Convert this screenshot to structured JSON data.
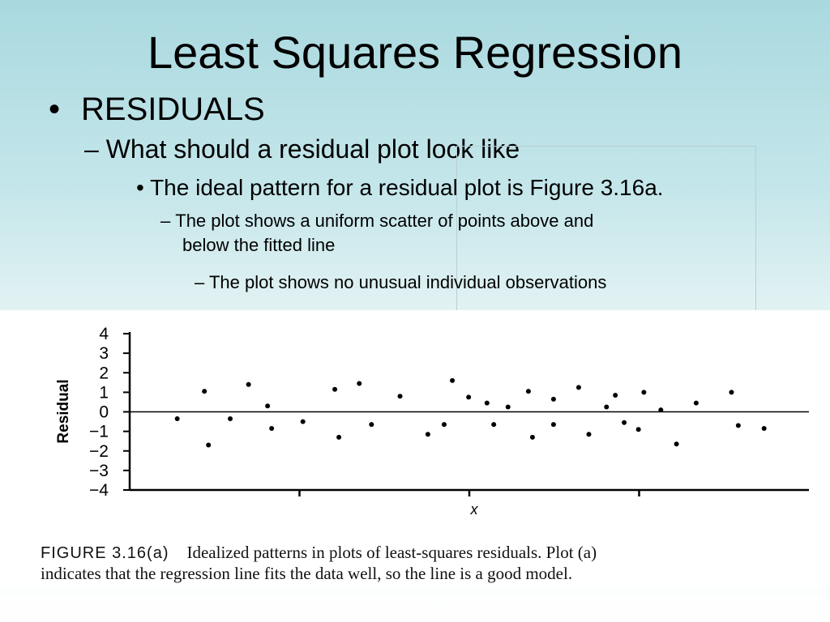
{
  "slide": {
    "title": "Least Squares Regression",
    "bullet_symbol": "•",
    "level1": "RESIDUALS",
    "level2": "– What should a residual plot look like",
    "level3": "• The ideal pattern for a residual plot is Figure 3.16a.",
    "level4_dash": "–",
    "level4_line1": "The plot shows a uniform scatter of points above and",
    "level4_line2": "below the fitted line",
    "level5": "– The plot shows no unusual individual observations"
  },
  "caption": {
    "label": "FIGURE 3.16(a)",
    "text_line1": "Idealized patterns in plots of least-squares residuals. Plot (a)",
    "text_line2": "indicates that the regression line fits the data well, so the line is a good model."
  },
  "chart_data": {
    "type": "scatter",
    "title": "",
    "xlabel": "x",
    "ylabel": "Residual",
    "ylim": [
      -4,
      4
    ],
    "yticks": [
      4,
      3,
      2,
      1,
      0,
      -1,
      -2,
      -3,
      -4
    ],
    "ytick_labels": [
      "4",
      "3",
      "2",
      "1",
      "0",
      "−1",
      "−2",
      "−3",
      "−4"
    ],
    "xlim": [
      0,
      100
    ],
    "xticks": [
      25,
      50,
      75
    ],
    "reference_line": 0,
    "grid": false,
    "point_color": "#000000",
    "points": [
      {
        "x": 7,
        "y": -0.35
      },
      {
        "x": 11,
        "y": 1.05
      },
      {
        "x": 11.6,
        "y": -1.7
      },
      {
        "x": 14.8,
        "y": -0.35
      },
      {
        "x": 17.5,
        "y": 1.4
      },
      {
        "x": 20.3,
        "y": 0.3
      },
      {
        "x": 20.9,
        "y": -0.85
      },
      {
        "x": 25.5,
        "y": -0.5
      },
      {
        "x": 30.2,
        "y": 1.15
      },
      {
        "x": 30.8,
        "y": -1.3
      },
      {
        "x": 33.8,
        "y": 1.45
      },
      {
        "x": 35.6,
        "y": -0.65
      },
      {
        "x": 39.8,
        "y": 0.8
      },
      {
        "x": 43.9,
        "y": -1.15
      },
      {
        "x": 46.3,
        "y": -0.65
      },
      {
        "x": 47.5,
        "y": 1.6
      },
      {
        "x": 49.9,
        "y": 0.75
      },
      {
        "x": 52.6,
        "y": 0.45
      },
      {
        "x": 53.6,
        "y": -0.65
      },
      {
        "x": 55.7,
        "y": 0.25
      },
      {
        "x": 58.7,
        "y": 1.05
      },
      {
        "x": 59.3,
        "y": -1.3
      },
      {
        "x": 62.4,
        "y": 0.65
      },
      {
        "x": 62.4,
        "y": -0.65
      },
      {
        "x": 66.1,
        "y": 1.25
      },
      {
        "x": 67.6,
        "y": -1.15
      },
      {
        "x": 70.2,
        "y": 0.25
      },
      {
        "x": 71.5,
        "y": 0.85
      },
      {
        "x": 72.8,
        "y": -0.55
      },
      {
        "x": 74.9,
        "y": -0.9
      },
      {
        "x": 75.7,
        "y": 1.0
      },
      {
        "x": 78.2,
        "y": 0.1
      },
      {
        "x": 80.5,
        "y": -1.65
      },
      {
        "x": 83.4,
        "y": 0.45
      },
      {
        "x": 88.6,
        "y": 1.0
      },
      {
        "x": 89.6,
        "y": -0.7
      },
      {
        "x": 93.4,
        "y": -0.85
      }
    ]
  }
}
